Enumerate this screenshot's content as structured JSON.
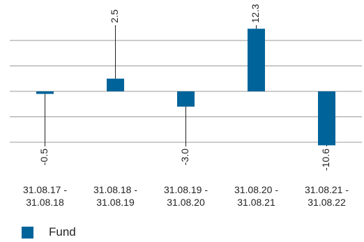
{
  "chart_data": {
    "type": "bar",
    "categories": [
      "31.08.17 - 31.08.18",
      "31.08.18 - 31.08.19",
      "31.08.19 - 31.08.20",
      "31.08.20 - 31.08.21",
      "31.08.21 - 31.08.22"
    ],
    "series": [
      {
        "name": "Fund",
        "color": "#00649a",
        "values": [
          -0.5,
          2.5,
          -3.0,
          12.3,
          -10.6
        ],
        "value_labels": [
          "-0.5",
          "2.5",
          "-3.0",
          "12.3",
          "-10.6"
        ]
      }
    ],
    "ylim": [
      -14,
      18
    ],
    "yticks": [
      -10,
      -5,
      0,
      5,
      10
    ],
    "grid": true
  }
}
